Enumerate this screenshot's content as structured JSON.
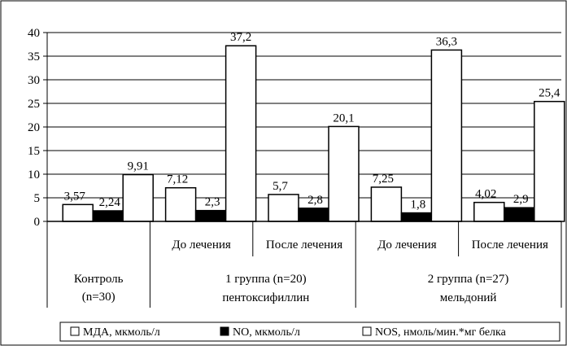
{
  "chart_data": {
    "type": "bar",
    "title": "",
    "xlabel": "",
    "ylabel": "",
    "ylim": [
      0,
      40
    ],
    "yticks": [
      0,
      5,
      10,
      15,
      20,
      25,
      30,
      35,
      40
    ],
    "grid": true,
    "legend_position": "bottom",
    "colors": {
      "МДА": "#ffffff",
      "NO": "#000000",
      "NOS": "#ffffff"
    },
    "groups": [
      {
        "label": "Контроль\n(n=30)",
        "values": [
          3.57,
          2.24,
          9.91
        ],
        "value_labels": [
          "3,57",
          "2,24",
          "9,91"
        ]
      },
      {
        "label": "До лечения",
        "values": [
          7.12,
          2.3,
          37.2
        ],
        "value_labels": [
          "7,12",
          "2,3",
          "37,2"
        ]
      },
      {
        "label": "После лечения",
        "values": [
          5.7,
          2.8,
          20.1
        ],
        "value_labels": [
          "5,7",
          "2,8",
          "20,1"
        ]
      },
      {
        "label": "До лечения",
        "values": [
          7.25,
          1.8,
          36.3
        ],
        "value_labels": [
          "7,25",
          "1,8",
          "36,3"
        ]
      },
      {
        "label": "После лечения",
        "values": [
          4.02,
          2.9,
          25.4
        ],
        "value_labels": [
          "4,02",
          "2,9",
          "25,4"
        ]
      }
    ],
    "supergroups": [
      {
        "label": "Контроль\n(n=30)"
      },
      {
        "label": "1 группа (n=20)\nпентоксифиллин"
      },
      {
        "label": "2 группа (n=27)\nмельдоний"
      }
    ],
    "series": [
      {
        "name": "МДА, мкмоль/л"
      },
      {
        "name": "NO, мкмоль/л"
      },
      {
        "name": "NOS, нмоль/мин.*мг белка"
      }
    ]
  }
}
